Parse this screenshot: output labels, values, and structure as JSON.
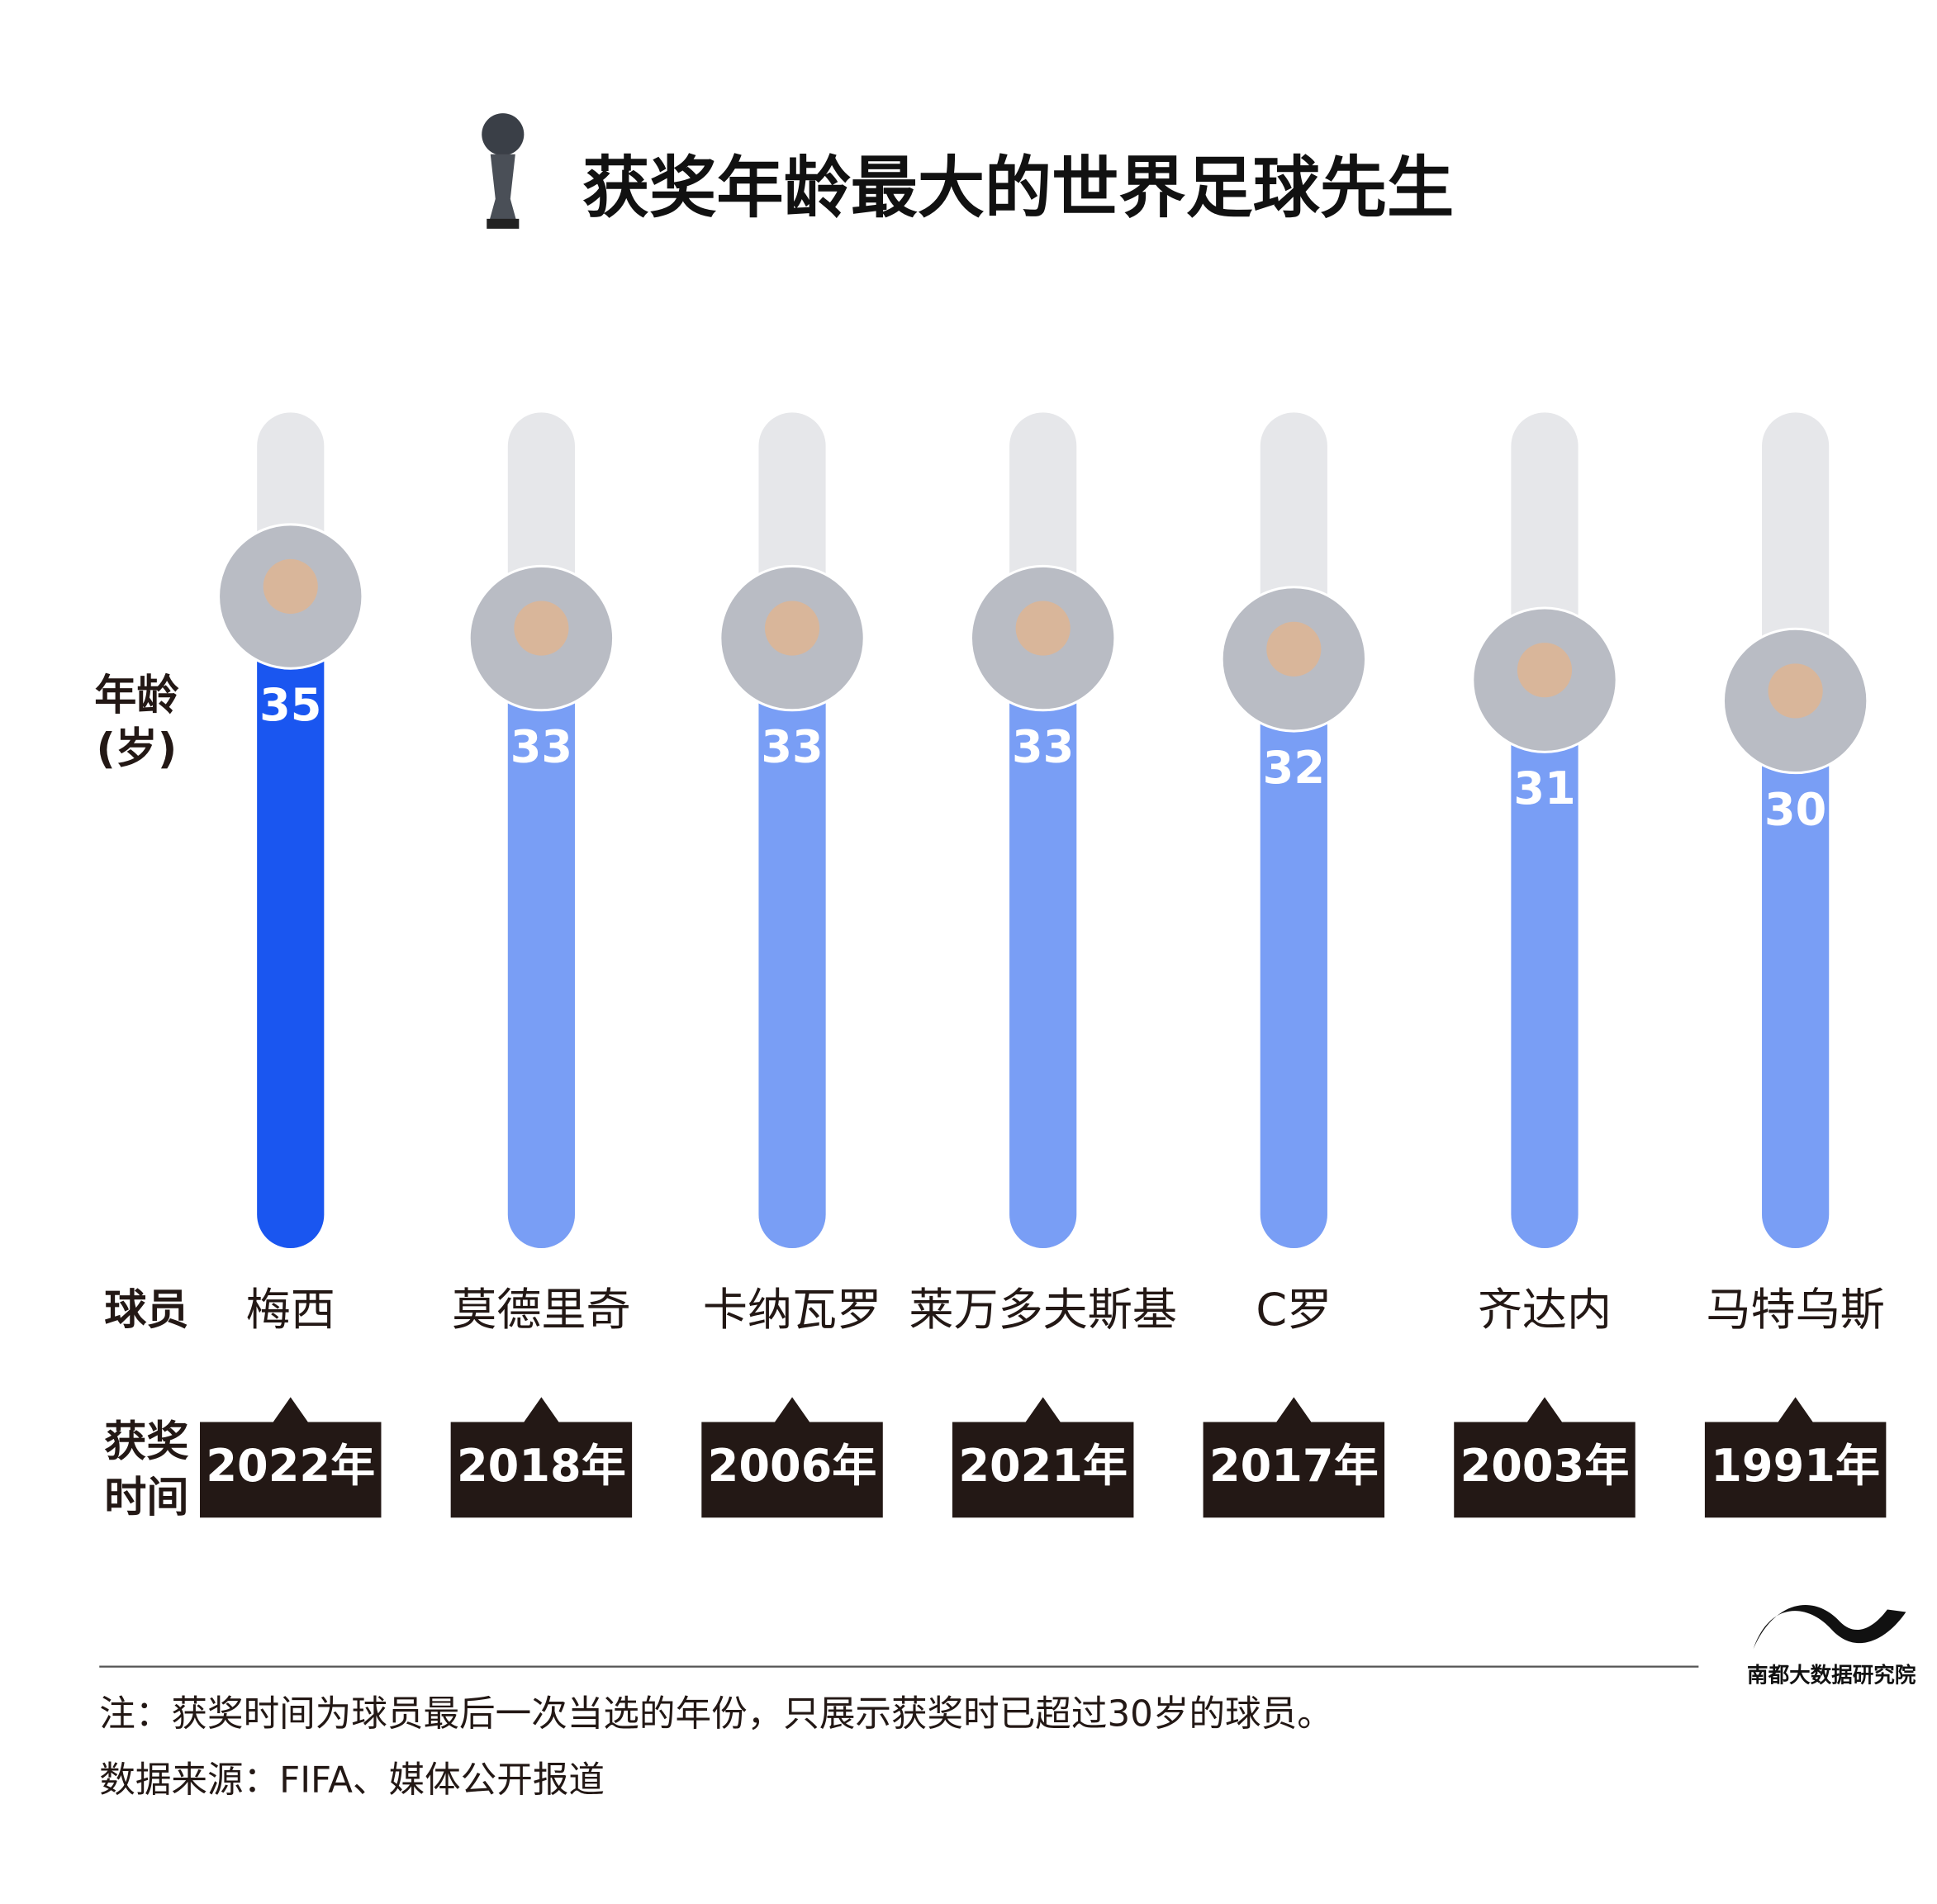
{
  "chart_data": {
    "type": "bar",
    "title": "获奖年龄最大的世界足球先生",
    "y_label": [
      "年龄",
      "(岁)"
    ],
    "row_label_players": "球员",
    "row_label_years": [
      "获奖",
      "时间"
    ],
    "categories": [
      "梅西",
      "莫德里奇",
      "卡纳瓦罗",
      "莱万多夫斯基",
      "C罗",
      "齐达内",
      "马特乌斯"
    ],
    "values": [
      35,
      33,
      33,
      33,
      32,
      31,
      30
    ],
    "award_years": [
      "2022年",
      "2018年",
      "2006年",
      "2021年",
      "2017年",
      "2003年",
      "1991年"
    ],
    "colors": [
      "#1a56f0",
      "#799ef5",
      "#799ef5",
      "#799ef5",
      "#799ef5",
      "#799ef5",
      "#799ef5"
    ],
    "track_color": "#e6e7ea",
    "ylim": [
      0,
      40
    ],
    "notes": [
      "注：获奖时间为球员最后一次当选的年份，只展示获奖时已超过30岁的球员。",
      "数据来源：FIFA、媒体公开报道"
    ],
    "source_logo": "南都大数据研究院"
  }
}
